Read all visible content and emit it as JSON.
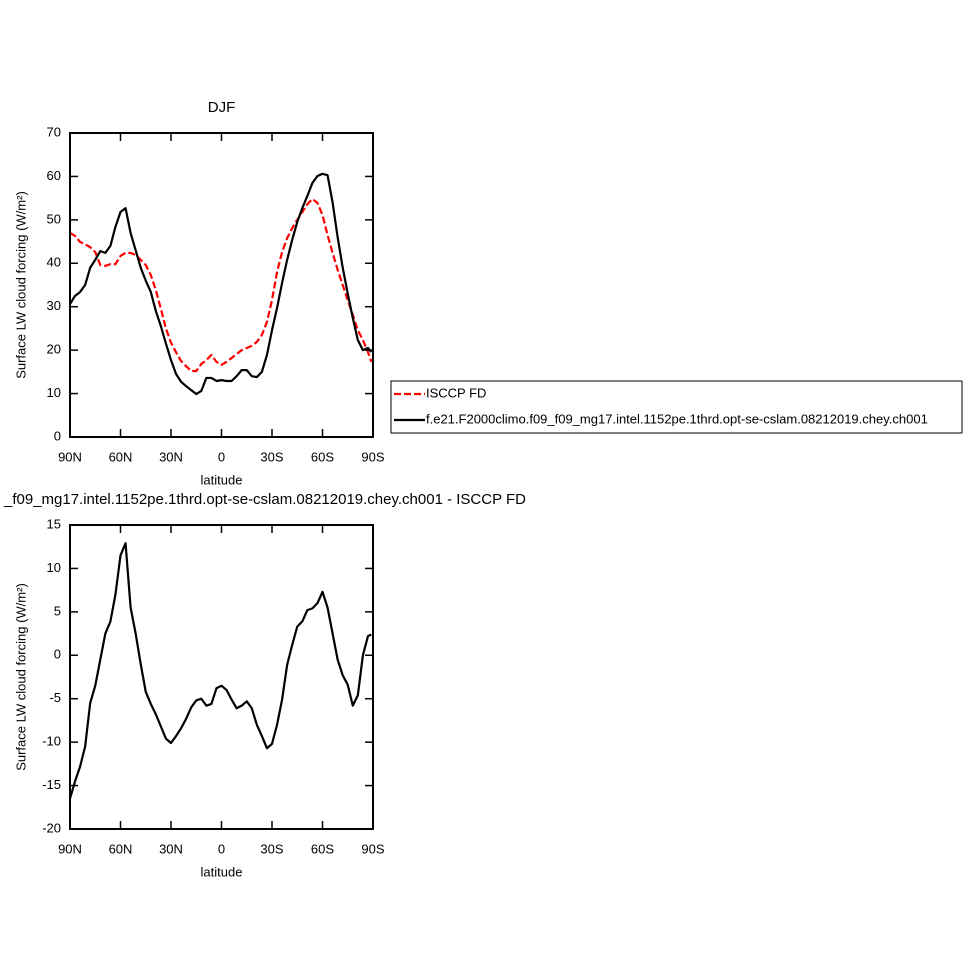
{
  "chart_data": [
    {
      "type": "line",
      "title": "DJF",
      "xlabel": "latitude",
      "ylabel": "Surface LW cloud forcing (W/m²)",
      "x": [
        90,
        87,
        84,
        81,
        78,
        75,
        72,
        69,
        66,
        63,
        60,
        57,
        54,
        51,
        48,
        45,
        42,
        39,
        36,
        33,
        30,
        27,
        24,
        21,
        18,
        15,
        12,
        9,
        6,
        3,
        0,
        -3,
        -6,
        -9,
        -12,
        -15,
        -18,
        -21,
        -24,
        -27,
        -30,
        -33,
        -36,
        -39,
        -42,
        -45,
        -48,
        -51,
        -54,
        -57,
        -60,
        -63,
        -66,
        -69,
        -72,
        -75,
        -78,
        -81,
        -84,
        -87,
        -89
      ],
      "series": [
        {
          "name": "ISCCP FD",
          "color": "#ff0000",
          "dash": true,
          "values": [
            47,
            46.3,
            44.9,
            44.4,
            43.7,
            42.6,
            39.6,
            39.4,
            39.8,
            39.8,
            41.7,
            42.4,
            42.4,
            41.9,
            40.8,
            39.6,
            37.3,
            33.8,
            29.5,
            25,
            21.7,
            19.5,
            17.5,
            16.3,
            15.2,
            15.2,
            16.8,
            17.7,
            18.9,
            17.3,
            16.6,
            17.3,
            18.2,
            19.1,
            20,
            20.5,
            21,
            21.9,
            23.5,
            26.5,
            31.5,
            38,
            42.6,
            45.8,
            48.1,
            50,
            51.8,
            53.6,
            54.8,
            53.9,
            51.1,
            46.5,
            42.4,
            38.5,
            35,
            31.5,
            28.1,
            24.6,
            22.3,
            19.6,
            17.3
          ]
        },
        {
          "name": "f.e21.F2000climo.f09_f09_mg17.intel.1152pe.1thrd.opt-se-cslam.08212019.chey.ch001",
          "color": "#000000",
          "dash": false,
          "values": [
            30.6,
            32.5,
            33.4,
            35,
            39,
            40.8,
            42.8,
            42.4,
            44,
            48.4,
            51.8,
            52.7,
            47,
            43,
            39,
            36,
            33.4,
            29,
            25.5,
            21.5,
            17.7,
            14.5,
            12.7,
            11.7,
            10.8,
            9.9,
            10.6,
            13.6,
            13.6,
            12.9,
            13.1,
            12.9,
            12.9,
            14,
            15.4,
            15.4,
            14,
            13.8,
            15,
            18.9,
            24.6,
            29.7,
            35.5,
            40.8,
            45.4,
            49.5,
            52.7,
            55.5,
            58.5,
            60.1,
            60.6,
            60.3,
            54,
            46,
            39,
            33,
            27.4,
            22.3,
            20,
            20.5,
            19.6
          ]
        }
      ],
      "xlim": [
        90,
        -90
      ],
      "xticks": [
        {
          "value": 90,
          "label": "90N"
        },
        {
          "value": 60,
          "label": "60N"
        },
        {
          "value": 30,
          "label": "30N"
        },
        0,
        {
          "value": -30,
          "label": "30S"
        },
        {
          "value": -60,
          "label": "60S"
        },
        {
          "value": -90,
          "label": "90S"
        }
      ],
      "ylim": [
        0,
        70
      ],
      "yticks": [
        0,
        10,
        20,
        30,
        40,
        50,
        60,
        70
      ],
      "legend": "right"
    },
    {
      "type": "line",
      "title": "_f09_mg17.intel.1152pe.1thrd.opt-se-cslam.08212019.chey.ch001 - ISCCP FD",
      "xlabel": "latitude",
      "ylabel": "Surface LW cloud forcing (W/m²)",
      "x": [
        90,
        87,
        84,
        81,
        78,
        75,
        72,
        69,
        66,
        63,
        60,
        57,
        54,
        51,
        48,
        45,
        42,
        39,
        36,
        33,
        30,
        27,
        24,
        21,
        18,
        15,
        12,
        9,
        6,
        3,
        0,
        -3,
        -6,
        -9,
        -12,
        -15,
        -18,
        -21,
        -24,
        -27,
        -30,
        -33,
        -36,
        -39,
        -42,
        -45,
        -48,
        -51,
        -54,
        -57,
        -60,
        -63,
        -66,
        -69,
        -72,
        -75,
        -78,
        -81,
        -84,
        -87,
        -89
      ],
      "series": [
        {
          "color": "#000000",
          "dash": false,
          "values": [
            -16.5,
            -14.5,
            -12.8,
            -10.5,
            -5.5,
            -3.5,
            -0.5,
            2.5,
            3.9,
            7,
            11.5,
            12.9,
            5.5,
            2.5,
            -1,
            -4.2,
            -5.6,
            -6.8,
            -8.2,
            -9.6,
            -10.1,
            -9.3,
            -8.4,
            -7.3,
            -6,
            -5.2,
            -5,
            -5.8,
            -5.6,
            -3.8,
            -3.5,
            -4,
            -5.1,
            -6.1,
            -5.8,
            -5.3,
            -6.1,
            -8,
            -9.3,
            -10.7,
            -10.2,
            -8,
            -5.1,
            -1.1,
            1.2,
            3.3,
            3.9,
            5.2,
            5.4,
            6,
            7.3,
            5.5,
            2.5,
            -0.5,
            -2.3,
            -3.4,
            -5.8,
            -4.6,
            0,
            2.2,
            2.4
          ]
        }
      ],
      "xlim": [
        90,
        -90
      ],
      "xticks": [
        {
          "value": 90,
          "label": "90N"
        },
        {
          "value": 60,
          "label": "60N"
        },
        {
          "value": 30,
          "label": "30N"
        },
        0,
        {
          "value": -30,
          "label": "30S"
        },
        {
          "value": -60,
          "label": "60S"
        },
        {
          "value": -90,
          "label": "90S"
        }
      ],
      "ylim": [
        -20,
        15
      ],
      "yticks": [
        -20,
        -15,
        -10,
        -5,
        0,
        5,
        10,
        15
      ]
    }
  ]
}
